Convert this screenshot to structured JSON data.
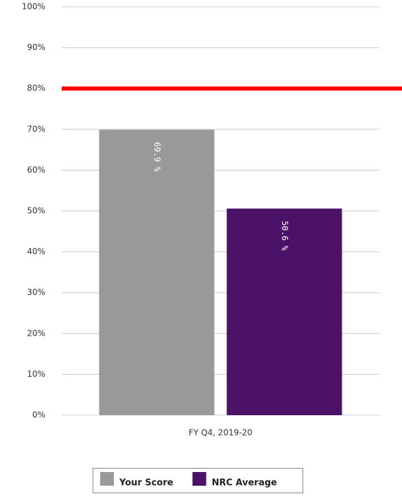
{
  "chart_data": {
    "type": "bar",
    "categories": [
      "FY Q4, 2019-20"
    ],
    "series": [
      {
        "name": "Your Score",
        "color": "#999999",
        "values": [
          69.9
        ],
        "value_labels": [
          "69.9 %"
        ]
      },
      {
        "name": "NRC Average",
        "color": "#4b1268",
        "values": [
          50.6
        ],
        "value_labels": [
          "50.6 %"
        ]
      }
    ],
    "ylim": [
      0,
      100
    ],
    "yticks": [
      {
        "value": 0,
        "label": "0%"
      },
      {
        "value": 10,
        "label": "10%"
      },
      {
        "value": 20,
        "label": "20%"
      },
      {
        "value": 30,
        "label": "30%"
      },
      {
        "value": 40,
        "label": "40%"
      },
      {
        "value": 50,
        "label": "50%"
      },
      {
        "value": 60,
        "label": "60%"
      },
      {
        "value": 70,
        "label": "70%"
      },
      {
        "value": 80,
        "label": "80%"
      },
      {
        "value": 90,
        "label": "90%"
      },
      {
        "value": 100,
        "label": "100%"
      }
    ],
    "grid": true,
    "reference_line": {
      "value": 80,
      "color": "#ff0000"
    },
    "legend": "bottom"
  }
}
